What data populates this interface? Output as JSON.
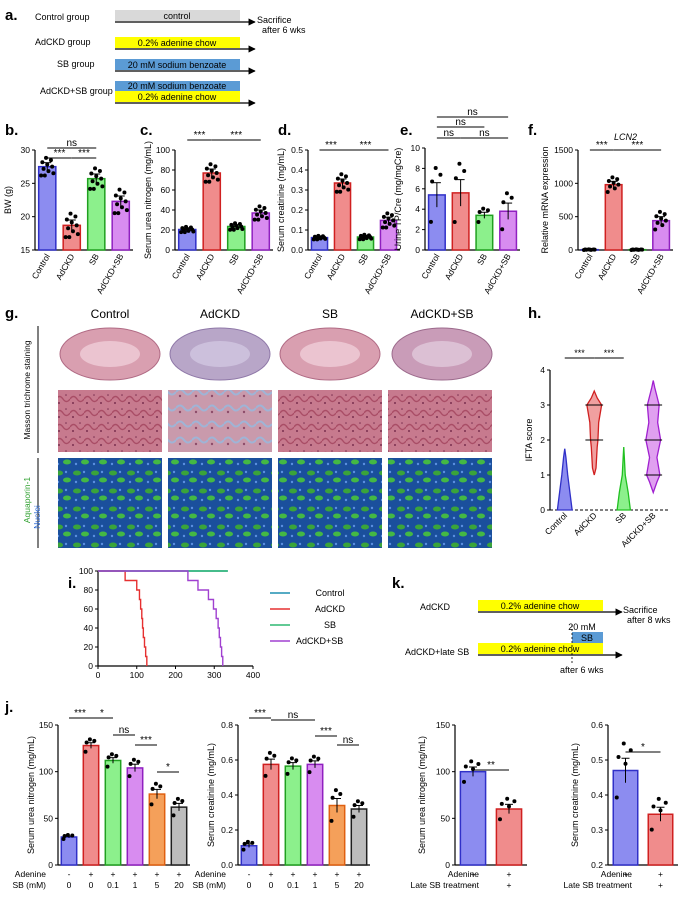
{
  "panel_labels": {
    "a": "a.",
    "b": "b.",
    "c": "c.",
    "d": "d.",
    "e": "e.",
    "f": "f.",
    "g": "g.",
    "h": "h.",
    "i": "i.",
    "j": "j.",
    "k": "k."
  },
  "colors": {
    "control": "#8c8cf0",
    "adckd": "#f08c8c",
    "sb": "#8cf08c",
    "adckd_sb": "#d88cf0",
    "late_sb": "#f5a05a",
    "sb20": "#bdbdbd",
    "yellow": "#ffff00",
    "sb_blue": "#5b9bd5",
    "gray_bar": "#d9d9d9"
  },
  "groups": [
    "Control",
    "AdCKD",
    "SB",
    "AdCKD+SB"
  ],
  "design_a": {
    "rows": [
      {
        "name": "Control group",
        "bars": [
          {
            "text": "control",
            "color": "#d9d9d9"
          }
        ]
      },
      {
        "name": "AdCKD group",
        "bars": [
          {
            "text": "0.2% adenine chow",
            "color": "#ffff00"
          }
        ]
      },
      {
        "name": "SB group",
        "bars": [
          {
            "text": "20 mM sodium benzoate",
            "color": "#5b9bd5"
          }
        ]
      },
      {
        "name": "AdCKD+SB group",
        "bars": [
          {
            "text": "20 mM sodium benzoate",
            "color": "#5b9bd5"
          },
          {
            "text": "0.2% adenine chow",
            "color": "#ffff00"
          }
        ]
      }
    ],
    "end_label_1": "Sacrifice",
    "end_label_2": "after 6 wks"
  },
  "design_k": {
    "row1_name": "AdCKD",
    "row1_bar": "0.2% adenine chow",
    "row2_name": "AdCKD+late SB",
    "row2_bar": "0.2% adenine chow",
    "sb_box": "SB",
    "sb_dose": "20 mM",
    "after_text": "after 6 wks",
    "end_label_1": "Sacrifice",
    "end_label_2": "after 8 wks"
  },
  "chart_data": [
    {
      "panel": "b",
      "type": "bar",
      "categories": [
        "Control",
        "AdCKD",
        "SB",
        "AdCKD+SB"
      ],
      "values": [
        27.5,
        18.7,
        25.7,
        22.3
      ],
      "errors": [
        0.6,
        0.8,
        0.7,
        0.8
      ],
      "ylabel": "BW (g)",
      "ylim": [
        15,
        30
      ],
      "yticks": [
        15,
        20,
        25,
        30
      ],
      "significance": [
        {
          "from": 0,
          "to": 1,
          "label": "***"
        },
        {
          "from": 1,
          "to": 2,
          "label": "***"
        },
        {
          "from": 0,
          "to": 2,
          "label": "ns"
        }
      ]
    },
    {
      "panel": "c",
      "type": "bar",
      "categories": [
        "Control",
        "AdCKD",
        "SB",
        "AdCKD+SB"
      ],
      "values": [
        20.5,
        77,
        23.5,
        37
      ],
      "errors": [
        1.2,
        4,
        1.5,
        3
      ],
      "ylabel": "Serum urea nitrogen (mg/mL)",
      "ylim": [
        0,
        100
      ],
      "yticks": [
        0,
        20,
        40,
        60,
        80,
        100
      ],
      "significance": [
        {
          "from": 0,
          "to": 1,
          "label": "***"
        },
        {
          "from": 1,
          "to": 3,
          "label": "***"
        }
      ]
    },
    {
      "panel": "d",
      "type": "bar",
      "categories": [
        "Control",
        "AdCKD",
        "SB",
        "AdCKD+SB"
      ],
      "values": [
        0.062,
        0.335,
        0.065,
        0.148
      ],
      "errors": [
        0.004,
        0.02,
        0.005,
        0.016
      ],
      "ylabel": "Serum creatinine (mg/mL)",
      "ylim": [
        0,
        0.5
      ],
      "yticks": [
        0,
        0.1,
        0.2,
        0.3,
        0.4,
        0.5
      ],
      "ytick_labels": [
        "0.0",
        "0.1",
        "0.2",
        "0.3",
        "0.4",
        "0.5"
      ],
      "significance": [
        {
          "from": 0,
          "to": 1,
          "label": "***"
        },
        {
          "from": 1,
          "to": 3,
          "label": "***"
        }
      ]
    },
    {
      "panel": "e",
      "type": "bar",
      "categories": [
        "Control",
        "AdCKD",
        "SB",
        "AdCKD+SB"
      ],
      "values": [
        5.4,
        5.6,
        3.4,
        3.8
      ],
      "errors": [
        1.2,
        1.3,
        0.3,
        0.8
      ],
      "ylabel": "Urine TP/Cre (mg/mgCre)",
      "ylim": [
        0,
        10
      ],
      "yticks": [
        0,
        2,
        4,
        6,
        8,
        10
      ],
      "significance": [
        {
          "from": 0,
          "to": 1,
          "label": "ns"
        },
        {
          "from": 1,
          "to": 3,
          "label": "ns"
        },
        {
          "from": 0,
          "to": 2,
          "label": "ns"
        },
        {
          "from": 0,
          "to": 3,
          "label": "ns"
        }
      ]
    },
    {
      "panel": "f",
      "type": "bar",
      "title": "LCN2",
      "categories": [
        "Control",
        "AdCKD",
        "SB",
        "AdCKD+SB"
      ],
      "values": [
        5,
        980,
        5,
        440
      ],
      "errors": [
        2,
        50,
        2,
        60
      ],
      "ylabel": "Relative mRNA expression",
      "ylim": [
        0,
        1500
      ],
      "yticks": [
        0,
        500,
        1000,
        1500
      ],
      "significance": [
        {
          "from": 0,
          "to": 1,
          "label": "***"
        },
        {
          "from": 1,
          "to": 3,
          "label": "***"
        }
      ]
    },
    {
      "panel": "h",
      "type": "violin",
      "categories": [
        "Control",
        "AdCKD",
        "SB",
        "AdCKD+SB"
      ],
      "ylabel": "IFTA score",
      "ylim": [
        0,
        4
      ],
      "yticks": [
        0,
        1,
        2,
        3,
        4
      ],
      "significance": [
        {
          "from": 0,
          "to": 1,
          "label": "***"
        },
        {
          "from": 1,
          "to": 2,
          "label": "***"
        }
      ]
    },
    {
      "panel": "i",
      "type": "line",
      "x_ticks": [
        0,
        100,
        200,
        300,
        400
      ],
      "yticks": [
        0,
        20,
        40,
        60,
        80,
        100
      ],
      "xlim": [
        0,
        400
      ],
      "ylim": [
        0,
        100
      ],
      "series": [
        {
          "name": "Control",
          "color": "#1f8fb0",
          "points": [
            [
              0,
              100
            ],
            [
              335,
              100
            ]
          ]
        },
        {
          "name": "AdCKD",
          "color": "#e63030",
          "points": [
            [
              0,
              100
            ],
            [
              70,
              100
            ],
            [
              70,
              90
            ],
            [
              100,
              90
            ],
            [
              100,
              80
            ],
            [
              107,
              80
            ],
            [
              107,
              70
            ],
            [
              110,
              70
            ],
            [
              110,
              60
            ],
            [
              113,
              60
            ],
            [
              113,
              50
            ],
            [
              115,
              50
            ],
            [
              115,
              40
            ],
            [
              117,
              40
            ],
            [
              117,
              30
            ],
            [
              120,
              30
            ],
            [
              120,
              20
            ],
            [
              123,
              20
            ],
            [
              123,
              10
            ],
            [
              126,
              10
            ],
            [
              126,
              0
            ]
          ]
        },
        {
          "name": "SB",
          "color": "#2eb872",
          "points": [
            [
              0,
              100
            ],
            [
              335,
              100
            ]
          ]
        },
        {
          "name": "AdCKD+SB",
          "color": "#a040d0",
          "points": [
            [
              0,
              100
            ],
            [
              232,
              100
            ],
            [
              232,
              90
            ],
            [
              258,
              90
            ],
            [
              258,
              80
            ],
            [
              285,
              80
            ],
            [
              285,
              70
            ],
            [
              298,
              70
            ],
            [
              298,
              60
            ],
            [
              305,
              60
            ],
            [
              305,
              50
            ],
            [
              310,
              50
            ],
            [
              310,
              40
            ],
            [
              313,
              40
            ],
            [
              313,
              30
            ],
            [
              316,
              30
            ],
            [
              316,
              20
            ],
            [
              319,
              20
            ],
            [
              319,
              10
            ],
            [
              322,
              10
            ],
            [
              322,
              0
            ]
          ]
        }
      ]
    },
    {
      "panel": "j1",
      "type": "bar",
      "categories": [
        "0",
        "0",
        "0.1",
        "1",
        "5",
        "20"
      ],
      "adenine": [
        "-",
        "+",
        "+",
        "+",
        "+",
        "+"
      ],
      "values": [
        30,
        128,
        112,
        104,
        76,
        62
      ],
      "errors": [
        1,
        3,
        3,
        4,
        5,
        4
      ],
      "ylabel": "Serum urea nitrogen (mg/mL)",
      "ylim": [
        0,
        150
      ],
      "yticks": [
        0,
        50,
        100,
        150
      ],
      "significance": [
        {
          "from": 0,
          "to": 1,
          "label": "***"
        },
        {
          "from": 1,
          "to": 2,
          "label": "*"
        },
        {
          "from": 2,
          "to": 3,
          "label": "ns"
        },
        {
          "from": 3,
          "to": 4,
          "label": "***"
        },
        {
          "from": 4,
          "to": 5,
          "label": "*"
        }
      ],
      "row_labels": [
        "Adenine",
        "SB (mM)"
      ]
    },
    {
      "panel": "j2",
      "type": "bar",
      "categories": [
        "0",
        "0",
        "0.1",
        "1",
        "5",
        "20"
      ],
      "adenine": [
        "-",
        "+",
        "+",
        "+",
        "+",
        "+"
      ],
      "values": [
        0.11,
        0.575,
        0.565,
        0.575,
        0.34,
        0.32
      ],
      "errors": [
        0.01,
        0.03,
        0.02,
        0.02,
        0.04,
        0.02
      ],
      "ylabel": "Serum creatinine  (mg/mL)",
      "ylim": [
        0,
        0.8
      ],
      "yticks": [
        0,
        0.2,
        0.4,
        0.6,
        0.8
      ],
      "ytick_labels": [
        "0.0",
        "0.2",
        "0.4",
        "0.6",
        "0.8"
      ],
      "significance": [
        {
          "from": 0,
          "to": 1,
          "label": "***"
        },
        {
          "from": 1,
          "to": 3,
          "label": "ns"
        },
        {
          "from": 3,
          "to": 4,
          "label": "***"
        },
        {
          "from": 4,
          "to": 5,
          "label": "ns"
        }
      ],
      "row_labels": [
        "Adenine",
        "SB (mM)"
      ]
    },
    {
      "panel": "k1",
      "type": "bar",
      "categories": [
        "-",
        "+"
      ],
      "adenine": [
        "+",
        "+"
      ],
      "values": [
        100,
        60
      ],
      "errors": [
        5,
        5
      ],
      "ylabel": "Serum urea nitrogen (mg/mL)",
      "ylim": [
        0,
        150
      ],
      "yticks": [
        0,
        50,
        100,
        150
      ],
      "significance": [
        {
          "from": 0,
          "to": 1,
          "label": "**"
        }
      ],
      "row_labels": [
        "Adenine",
        "Late SB treatment"
      ]
    },
    {
      "panel": "k2",
      "type": "bar",
      "categories": [
        "-",
        "+"
      ],
      "adenine": [
        "+",
        "+"
      ],
      "values": [
        0.47,
        0.345
      ],
      "errors": [
        0.035,
        0.02
      ],
      "ylabel": "Serum creatinine  (mg/mL)",
      "ylim": [
        0.2,
        0.6
      ],
      "yticks": [
        0.2,
        0.3,
        0.4,
        0.5,
        0.6
      ],
      "ytick_labels": [
        "0.2",
        "0.3",
        "0.4",
        "0.5",
        "0.6"
      ],
      "significance": [
        {
          "from": 0,
          "to": 1,
          "label": "*"
        }
      ],
      "row_labels": [
        "Adenine",
        "Late SB treatment"
      ]
    }
  ],
  "histology": {
    "columns": [
      "Control",
      "AdCKD",
      "SB",
      "AdCKD+SB"
    ],
    "row_label_1": "Masson trichrome staining",
    "row_label_2a": "Aquaporin-1",
    "row_label_2b": "Nuclei"
  }
}
